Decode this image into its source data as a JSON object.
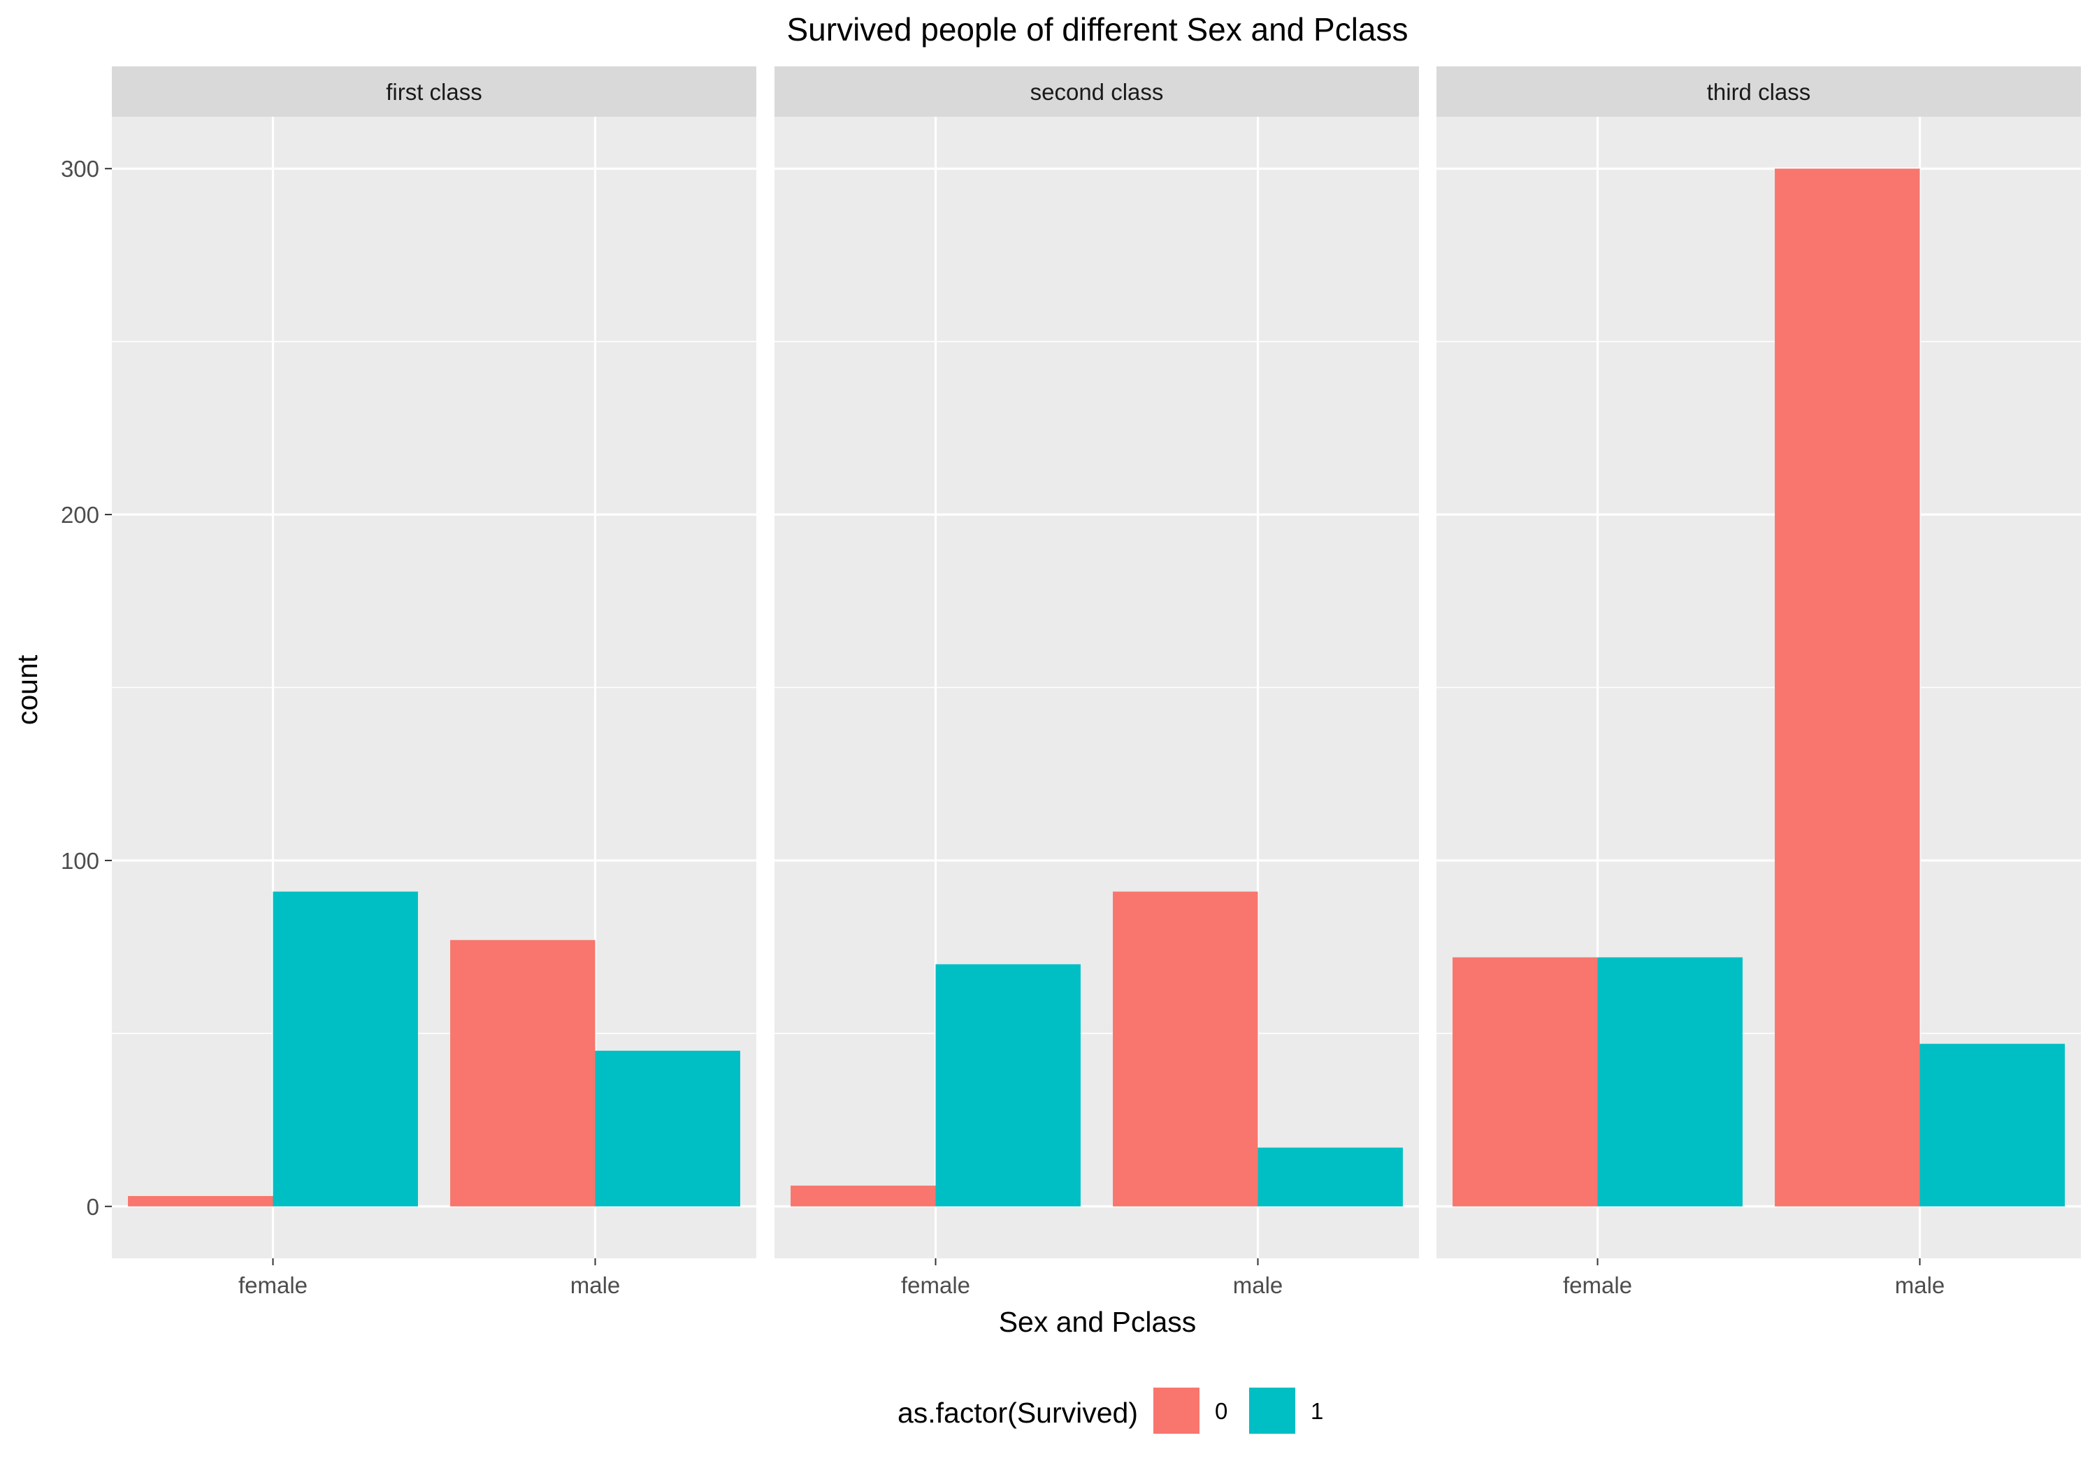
{
  "chart_data": {
    "type": "bar",
    "title": "Survived people of different Sex and Pclass",
    "xlabel": "Sex and Pclass",
    "ylabel": "count",
    "categories": [
      "female",
      "male"
    ],
    "ylim": [
      -15,
      315
    ],
    "yticks": [
      0,
      100,
      200,
      300
    ],
    "grid": true,
    "legend": {
      "title": "as.factor(Survived)",
      "position": "bottom",
      "entries": [
        "0",
        "1"
      ]
    },
    "colors": {
      "0": "#F8766D",
      "1": "#00BFC4"
    },
    "panels": [
      {
        "label": "first class",
        "series": [
          {
            "name": "0",
            "values": [
              3,
              77
            ]
          },
          {
            "name": "1",
            "values": [
              91,
              45
            ]
          }
        ]
      },
      {
        "label": "second class",
        "series": [
          {
            "name": "0",
            "values": [
              6,
              91
            ]
          },
          {
            "name": "1",
            "values": [
              70,
              17
            ]
          }
        ]
      },
      {
        "label": "third class",
        "series": [
          {
            "name": "0",
            "values": [
              72,
              300
            ]
          },
          {
            "name": "1",
            "values": [
              72,
              47
            ]
          }
        ]
      }
    ]
  }
}
